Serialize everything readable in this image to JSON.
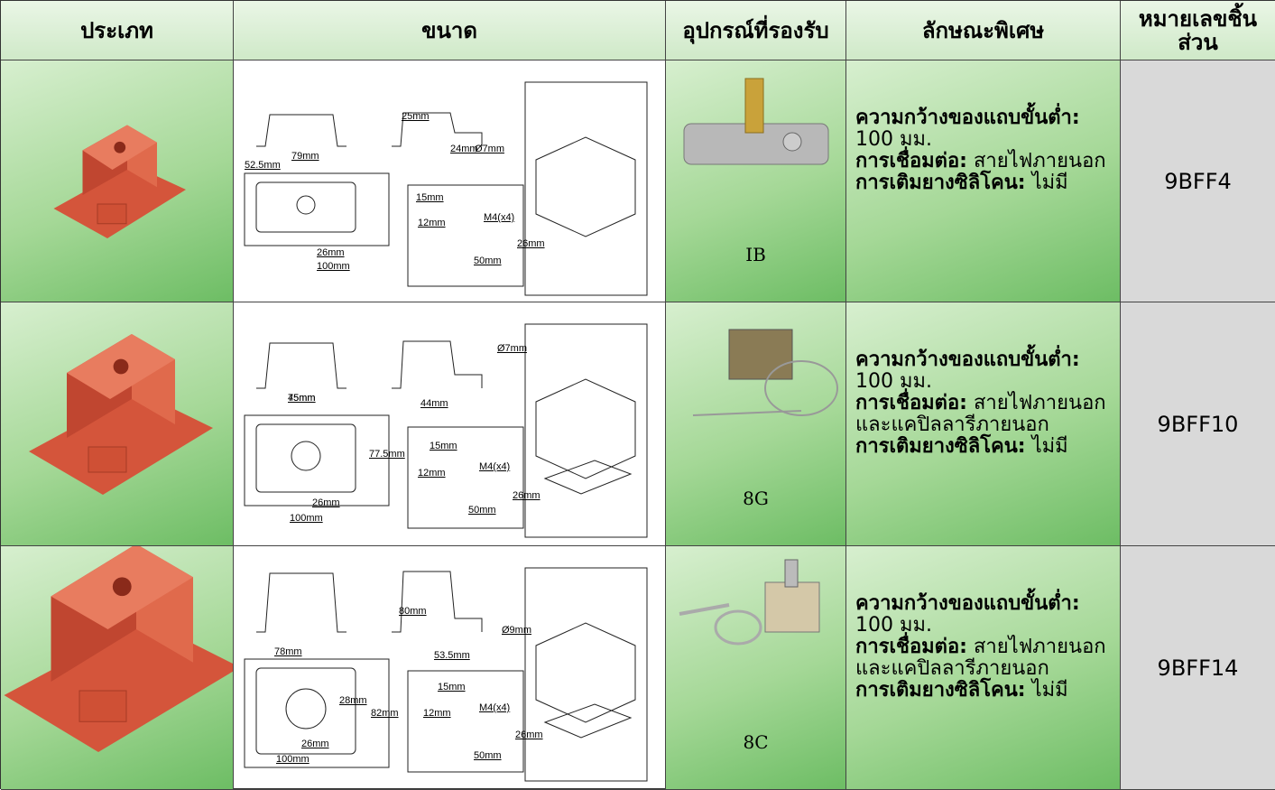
{
  "header": {
    "columns": [
      "ประเภท",
      "ขนาด",
      "อุปกรณ์ที่รองรับ",
      "ลักษณะพิเศษ",
      "หมายเลขชิ้นส่วน"
    ]
  },
  "rows": [
    {
      "size_labels": [
        "79mm",
        "25mm",
        "24mm",
        "Ø7mm",
        "52.5mm",
        "15mm",
        "M4(x4)",
        "12mm",
        "26mm",
        "26mm",
        "50mm",
        "100mm"
      ],
      "device": "IB",
      "features": [
        {
          "label": "ความกว้างของแถบขั้นต่ำ:",
          "value": "100 มม."
        },
        {
          "label": "การเชื่อมต่อ:",
          "value": "สายไฟภายนอก"
        },
        {
          "label": "การเติมยางซิลิโคน:",
          "value": "ไม่มี"
        }
      ],
      "part_number": "9BFF4"
    },
    {
      "size_labels": [
        "45mm",
        "Ø7mm",
        "75mm",
        "44mm",
        "77.5mm",
        "15mm",
        "M4(x4)",
        "12mm",
        "26mm",
        "26mm",
        "50mm",
        "100mm"
      ],
      "device": "8G",
      "features": [
        {
          "label": "ความกว้างของแถบขั้นต่ำ:",
          "value": "100 มม."
        },
        {
          "label": "การเชื่อมต่อ:",
          "value": "สายไฟภายนอกและแคปิลลารีภายนอก"
        },
        {
          "label": "การเติมยางซิลิโคน:",
          "value": "ไม่มี"
        }
      ],
      "part_number": "9BFF10"
    },
    {
      "size_labels": [
        "80mm",
        "Ø9mm",
        "78mm",
        "53.5mm",
        "28mm",
        "82mm",
        "15mm",
        "M4(x4)",
        "12mm",
        "26mm",
        "26mm",
        "50mm",
        "100mm"
      ],
      "device": "8C",
      "features": [
        {
          "label": "ความกว้างของแถบขั้นต่ำ:",
          "value": "100 มม."
        },
        {
          "label": "การเชื่อมต่อ:",
          "value": "สายไฟภายนอกและแคปิลลารีภายนอก"
        },
        {
          "label": "การเติมยางซิลิโคน:",
          "value": "ไม่มี"
        }
      ],
      "part_number": "9BFF14"
    }
  ]
}
